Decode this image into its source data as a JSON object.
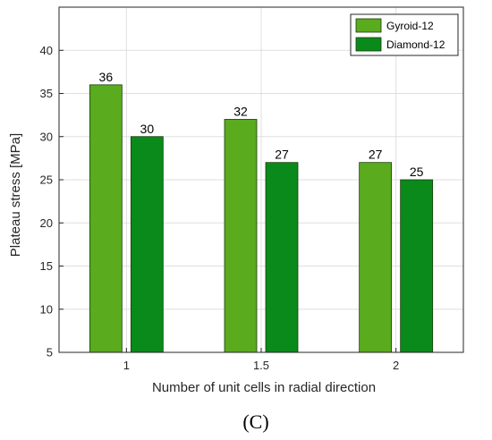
{
  "chart_data": {
    "type": "bar",
    "categories": [
      "1",
      "1.5",
      "2"
    ],
    "series": [
      {
        "name": "Gyroid-12",
        "values": [
          36,
          32,
          27
        ],
        "color": "#5aab1e"
      },
      {
        "name": "Diamond-12",
        "values": [
          30,
          27,
          25
        ],
        "color": "#0a8a1a"
      }
    ],
    "xlabel": "Number of unit cells in radial direction",
    "ylabel": "Plateau stress [MPa]",
    "ylim": [
      5,
      45
    ],
    "yticks": [
      5,
      10,
      15,
      20,
      25,
      30,
      35,
      40
    ],
    "grid": true,
    "legend_position": "top-right",
    "data_labels": true
  },
  "panel_label": "(C)"
}
